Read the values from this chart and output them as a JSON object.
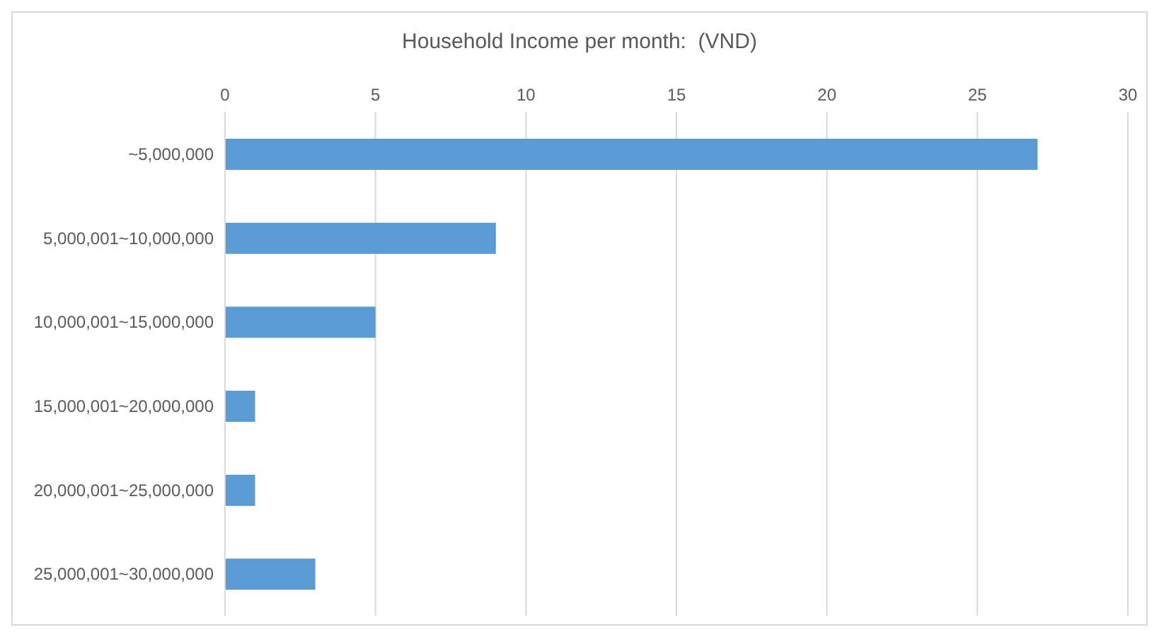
{
  "chart_data": {
    "type": "bar",
    "orientation": "horizontal",
    "title": "Household Income per month:  (VND)",
    "categories": [
      "~5,000,000",
      "5,000,001~10,000,000",
      "10,000,001~15,000,000",
      "15,000,001~20,000,000",
      "20,000,001~25,000,000",
      "25,000,001~30,000,000"
    ],
    "values": [
      27,
      9,
      5,
      1,
      1,
      3
    ],
    "color": "#5b9bd5",
    "xlim": [
      0,
      30
    ],
    "xticks": [
      0,
      5,
      10,
      15,
      20,
      25,
      30
    ],
    "grid": "x"
  }
}
